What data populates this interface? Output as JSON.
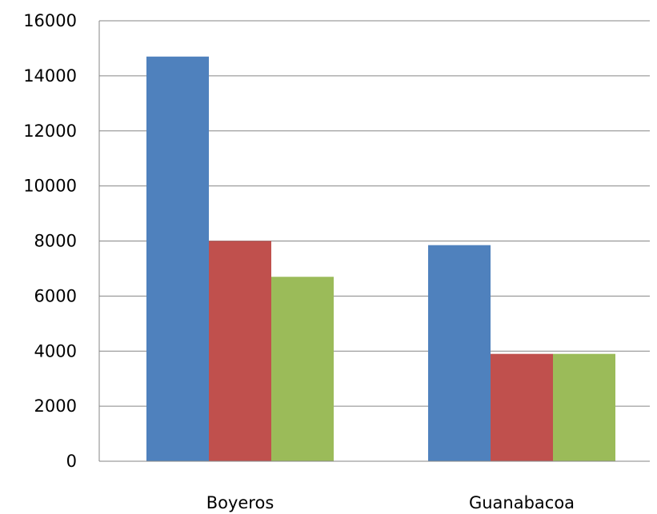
{
  "chart_data": {
    "type": "bar",
    "title": "",
    "xlabel": "",
    "ylabel": "",
    "categories": [
      "Boyeros",
      "Guanabacoa"
    ],
    "series": [
      {
        "color": "#4F81BD",
        "values": [
          14700,
          7850
        ]
      },
      {
        "color": "#C0504D",
        "values": [
          8000,
          3900
        ]
      },
      {
        "color": "#9BBB59",
        "values": [
          6700,
          3900
        ]
      }
    ],
    "ylim": [
      0,
      16000
    ],
    "y_ticks": [
      0,
      2000,
      4000,
      6000,
      8000,
      10000,
      12000,
      14000,
      16000
    ],
    "y_tick_labels": [
      "0",
      "2000",
      "4000",
      "6000",
      "8000",
      "10000",
      "12000",
      "14000",
      "16000"
    ],
    "grid": true,
    "legend": "none"
  }
}
